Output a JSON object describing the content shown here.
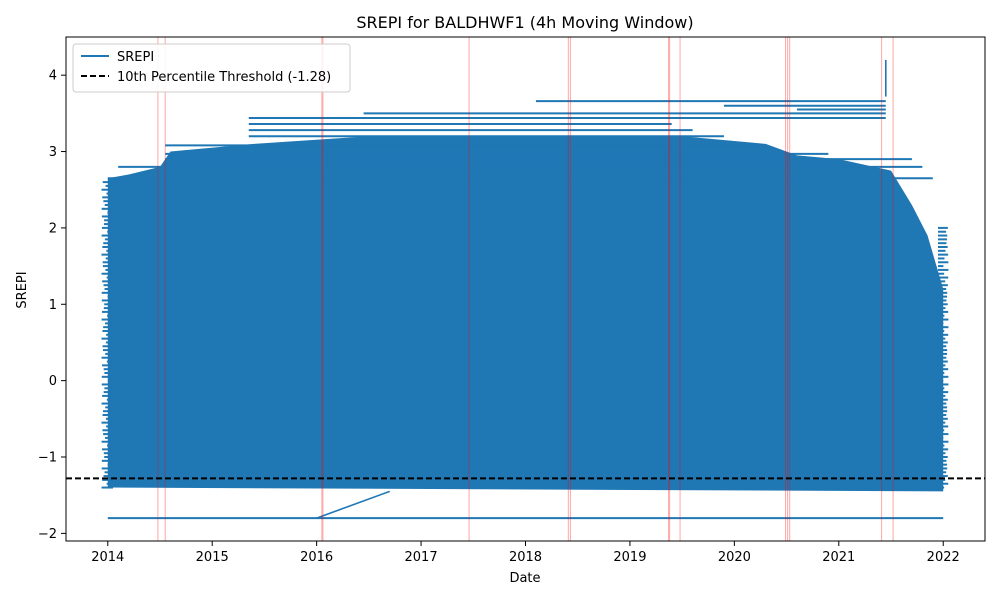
{
  "chart_data": {
    "type": "line",
    "title": "SREPI for BALDHWF1 (4h Moving Window)",
    "xlabel": "Date",
    "ylabel": "SREPI",
    "xlim": [
      2013.6,
      2022.4
    ],
    "ylim": [
      -2.1,
      4.5
    ],
    "x_ticks": [
      2014,
      2015,
      2016,
      2017,
      2018,
      2019,
      2020,
      2021,
      2022
    ],
    "x_tick_labels": [
      "2014",
      "2015",
      "2016",
      "2017",
      "2018",
      "2019",
      "2020",
      "2021",
      "2022"
    ],
    "y_ticks": [
      -2,
      -1,
      0,
      1,
      2,
      3,
      4
    ],
    "y_tick_labels": [
      "−2",
      "−1",
      "0",
      "1",
      "2",
      "3",
      "4"
    ],
    "grid": false,
    "legend": {
      "location": "upper-left",
      "entries": [
        {
          "label": "SREPI",
          "style": "solid",
          "color": "#1f77b4"
        },
        {
          "label": "10th Percentile Threshold (-1.28)",
          "style": "dashed",
          "color": "#000000"
        }
      ]
    },
    "series": [
      {
        "name": "SREPI",
        "color": "#1f77b4",
        "band": {
          "x_start": 2014.0,
          "x_end": 2022.0,
          "y_low": -1.45,
          "y_high": 3.2
        },
        "upper_envelope": [
          [
            2014.0,
            2.65
          ],
          [
            2014.2,
            2.7
          ],
          [
            2014.5,
            2.8
          ],
          [
            2014.6,
            3.0
          ],
          [
            2015.4,
            3.1
          ],
          [
            2016.5,
            3.2
          ],
          [
            2017.5,
            3.2
          ],
          [
            2018.5,
            3.2
          ],
          [
            2019.5,
            3.2
          ],
          [
            2020.3,
            3.1
          ],
          [
            2020.6,
            2.95
          ],
          [
            2021.0,
            2.9
          ],
          [
            2021.5,
            2.75
          ],
          [
            2021.7,
            2.3
          ],
          [
            2021.85,
            1.9
          ],
          [
            2022.0,
            1.2
          ]
        ],
        "lower_envelope": [
          [
            2014.0,
            -1.4
          ],
          [
            2022.0,
            -1.45
          ]
        ],
        "horizontal_segments": [
          {
            "x0": 2014.0,
            "x1": 2022.0,
            "y": -1.8
          },
          {
            "x0": 2018.1,
            "x1": 2021.45,
            "y": 3.66
          },
          {
            "x0": 2016.45,
            "x1": 2021.45,
            "y": 3.5
          },
          {
            "x0": 2015.35,
            "x1": 2021.45,
            "y": 3.44
          },
          {
            "x0": 2015.35,
            "x1": 2019.4,
            "y": 3.36
          },
          {
            "x0": 2015.35,
            "x1": 2019.6,
            "y": 3.28
          },
          {
            "x0": 2015.35,
            "x1": 2019.9,
            "y": 3.2
          },
          {
            "x0": 2014.55,
            "x1": 2020.3,
            "y": 3.08
          },
          {
            "x0": 2014.55,
            "x1": 2020.9,
            "y": 2.97
          },
          {
            "x0": 2014.55,
            "x1": 2021.7,
            "y": 2.9
          },
          {
            "x0": 2014.1,
            "x1": 2021.8,
            "y": 2.8
          },
          {
            "x0": 2014.0,
            "x1": 2021.9,
            "y": 2.65
          },
          {
            "x0": 2020.6,
            "x1": 2021.45,
            "y": 3.55
          },
          {
            "x0": 2019.9,
            "x1": 2021.45,
            "y": 3.6
          }
        ],
        "connectors": [
          [
            [
              2016.0,
              -1.8
            ],
            [
              2016.7,
              -1.45
            ]
          ],
          [
            [
              2021.45,
              3.72
            ],
            [
              2021.45,
              4.2
            ]
          ]
        ]
      },
      {
        "name": "10th Percentile Threshold (-1.28)",
        "color": "#000000",
        "dashed": true,
        "y": -1.28
      }
    ],
    "event_lines": {
      "color": "#ff0000",
      "x": [
        2014.48,
        2014.55,
        2016.05,
        2016.06,
        2017.46,
        2018.41,
        2018.43,
        2019.37,
        2019.38,
        2019.48,
        2020.49,
        2020.51,
        2020.53,
        2021.41,
        2021.52
      ]
    }
  }
}
